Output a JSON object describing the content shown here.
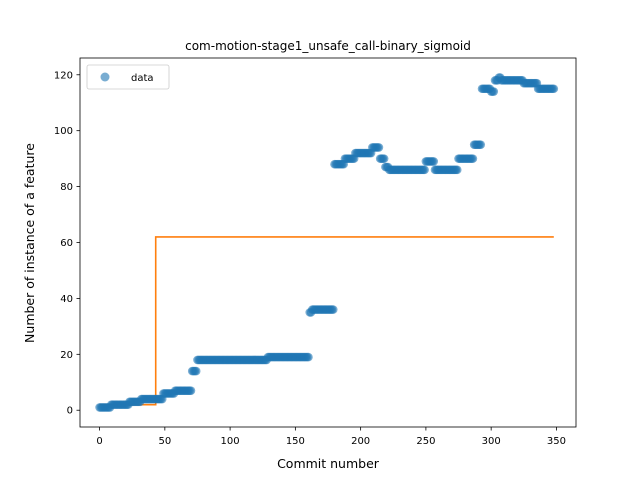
{
  "chart_data": {
    "type": "scatter",
    "title": "com-motion-stage1_unsafe_call-binary_sigmoid",
    "xlabel": "Commit number",
    "ylabel": "Number of instance of a feature",
    "xlim": [
      -15,
      365
    ],
    "ylim": [
      -6,
      126
    ],
    "xticks": [
      0,
      50,
      100,
      150,
      200,
      250,
      300,
      350
    ],
    "yticks": [
      0,
      20,
      40,
      60,
      80,
      100,
      120
    ],
    "grid": false,
    "legend": {
      "placement": "top-left",
      "entries": [
        "data"
      ]
    },
    "colors": {
      "data": "#1f77b4",
      "fit": "#ff7f0e"
    },
    "series": [
      {
        "name": "data",
        "kind": "scatter",
        "segments": [
          {
            "x_start": 0,
            "x_end": 8,
            "y": 1
          },
          {
            "x_start": 9,
            "x_end": 22,
            "y": 2
          },
          {
            "x_start": 23,
            "x_end": 31,
            "y": 3
          },
          {
            "x_start": 32,
            "x_end": 48,
            "y": 4
          },
          {
            "x_start": 49,
            "x_end": 57,
            "y": 6
          },
          {
            "x_start": 58,
            "x_end": 70,
            "y": 7
          },
          {
            "x_start": 71,
            "x_end": 74,
            "y": 14
          },
          {
            "x_start": 75,
            "x_end": 128,
            "y": 18
          },
          {
            "x_start": 129,
            "x_end": 160,
            "y": 19
          },
          {
            "x_start": 161,
            "x_end": 162,
            "y": 35
          },
          {
            "x_start": 163,
            "x_end": 179,
            "y": 36
          },
          {
            "x_start": 180,
            "x_end": 187,
            "y": 88
          },
          {
            "x_start": 188,
            "x_end": 195,
            "y": 90
          },
          {
            "x_start": 196,
            "x_end": 208,
            "y": 92
          },
          {
            "x_start": 209,
            "x_end": 214,
            "y": 94
          },
          {
            "x_start": 215,
            "x_end": 218,
            "y": 90
          },
          {
            "x_start": 219,
            "x_end": 221,
            "y": 87
          },
          {
            "x_start": 222,
            "x_end": 249,
            "y": 86
          },
          {
            "x_start": 250,
            "x_end": 256,
            "y": 89
          },
          {
            "x_start": 257,
            "x_end": 274,
            "y": 86
          },
          {
            "x_start": 275,
            "x_end": 286,
            "y": 90
          },
          {
            "x_start": 287,
            "x_end": 292,
            "y": 95
          },
          {
            "x_start": 293,
            "x_end": 299,
            "y": 115
          },
          {
            "x_start": 300,
            "x_end": 302,
            "y": 114
          },
          {
            "x_start": 303,
            "x_end": 305,
            "y": 118
          },
          {
            "x_start": 306,
            "x_end": 307,
            "y": 119
          },
          {
            "x_start": 308,
            "x_end": 324,
            "y": 118
          },
          {
            "x_start": 325,
            "x_end": 335,
            "y": 117
          },
          {
            "x_start": 336,
            "x_end": 348,
            "y": 115
          }
        ]
      },
      {
        "name": "",
        "kind": "step-line",
        "points": [
          [
            0,
            2
          ],
          [
            43,
            2
          ],
          [
            43,
            62
          ],
          [
            348,
            62
          ]
        ]
      }
    ]
  }
}
